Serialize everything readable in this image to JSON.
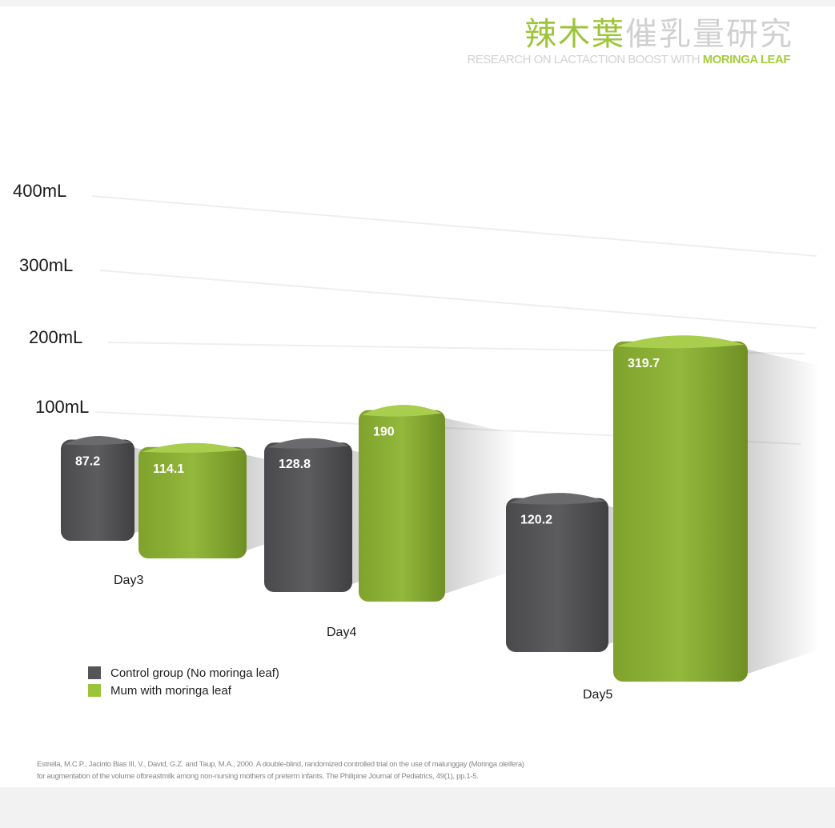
{
  "title": {
    "cn_highlight": "辣木葉",
    "cn_rest": "催乳量研究",
    "en_plain": "RESEARCH ON LACTACTION BOOST WITH ",
    "en_highlight": "MORINGA LEAF"
  },
  "colors": {
    "control": "#555557",
    "moringa": "#8fb33a",
    "accent": "#9cc43a"
  },
  "chart_data": {
    "type": "bar",
    "title": "",
    "categories": [
      "Day3",
      "Day4",
      "Day5"
    ],
    "series": [
      {
        "name": "Control group (No moringa leaf)",
        "values": [
          87.2,
          128.8,
          120.2
        ],
        "labels": [
          "87.2",
          "128.8",
          "120.2"
        ]
      },
      {
        "name": "Mum with moringa leaf",
        "values": [
          114.1,
          190,
          319.7
        ],
        "labels": [
          "114.1",
          "190",
          "319.7"
        ]
      }
    ],
    "yticks": [
      "100mL",
      "200mL",
      "300mL",
      "400mL"
    ],
    "ylim": [
      0,
      400
    ],
    "grid": true,
    "legend": "bottom-left",
    "style": "3d"
  },
  "footnote": {
    "line1": "Estrella, M.C.P., Jacinto Bias III, V., David, G.Z. and Taup, M.A., 2000. A double-blind, randomized controlled trial on the use of malunggay (Moringa oleifera)",
    "line2": "for augmentation of the volume ofbreastmilk among non-nursing mothers of preterm infants. The Philipine Journal of Pediatrics, 49(1), pp.1-5."
  }
}
